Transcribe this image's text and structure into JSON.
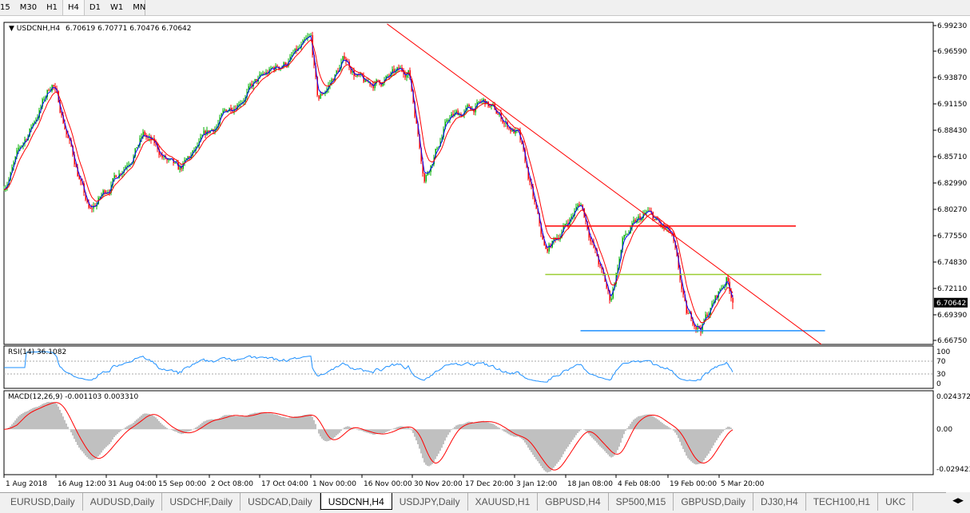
{
  "toolbar": {
    "timeframes": [
      "15",
      "M30",
      "H1",
      "H4",
      "D1",
      "W1",
      "MN"
    ],
    "active": "H4"
  },
  "header": {
    "symbol": "USDCNH,H4",
    "ohlc": "6.70619 6.70771 6.70476 6.70642"
  },
  "price_axis": {
    "labels": [
      "6.99230",
      "6.96590",
      "6.93870",
      "6.91150",
      "6.88430",
      "6.85710",
      "6.82990",
      "6.80270",
      "6.77550",
      "6.74830",
      "6.72110",
      "6.69390",
      "6.66750"
    ],
    "current": "6.70642"
  },
  "rsi": {
    "title": "RSI(14) 36.1082",
    "levels": [
      "100",
      "70",
      "30",
      "0"
    ]
  },
  "macd": {
    "title": "MACD(12,26,9) -0.001103 0.003310",
    "labels": [
      "0.024372",
      "0.00",
      "-0.029423"
    ]
  },
  "xaxis": {
    "labels": [
      "1 Aug 2018",
      "16 Aug 12:00",
      "31 Aug 04:00",
      "15 Sep 00:00",
      "2 Oct 08:00",
      "17 Oct 04:00",
      "1 Nov 00:00",
      "16 Nov 00:00",
      "30 Nov 20:00",
      "17 Dec 20:00",
      "3 Jan 12:00",
      "18 Jan 08:00",
      "4 Feb 08:00",
      "19 Feb 00:00",
      "5 Mar 20:00"
    ],
    "dates": [
      "2018-08-01",
      "2018-08-16",
      "2018-08-31",
      "2018-09-15",
      "2018-10-02",
      "2018-10-17",
      "2018-11-01",
      "2018-11-16",
      "2018-11-30",
      "2018-12-17",
      "2019-01-03",
      "2019-01-18",
      "2019-02-04",
      "2019-02-19",
      "2019-03-05"
    ]
  },
  "tabs": [
    "EURUSD,Daily",
    "AUDUSD,Daily",
    "USDCHF,Daily",
    "USDCAD,Daily",
    "USDCNH,H4",
    "USDJPY,Daily",
    "XAUUSD,H1",
    "GBPUSD,H4",
    "SP500,M15",
    "GBPUSD,Daily",
    "DJ30,H4",
    "TECH100,H1",
    "UKC"
  ],
  "active_tab": "USDCNH,H4",
  "colors": {
    "bull": "#00b000",
    "bear": "#ff0000",
    "ma_fast": "#0000ff",
    "ma_slow": "#ff0000",
    "rsi": "#1e90ff",
    "macd_hist": "#c0c0c0",
    "macd_signal": "#ff0000",
    "resistance": "#ff0000",
    "mid": "#9acd32",
    "support": "#1e90ff",
    "trendline": "#ff0000"
  },
  "chart_data": {
    "type": "candlestick",
    "symbol": "USDCNH",
    "timeframe": "H4",
    "ylim": [
      6.6675,
      6.9923
    ],
    "price_path": [
      [
        "2018-08-01",
        6.8275
      ],
      [
        "2018-08-15",
        6.935
      ],
      [
        "2018-08-26",
        6.797
      ],
      [
        "2018-09-11",
        6.88
      ],
      [
        "2018-09-22",
        6.838
      ],
      [
        "2018-10-11",
        6.92
      ],
      [
        "2018-11-01",
        6.974
      ],
      [
        "2018-11-03",
        6.912
      ],
      [
        "2018-11-11",
        6.958
      ],
      [
        "2018-11-17",
        6.929
      ],
      [
        "2018-11-29",
        6.946
      ],
      [
        "2018-12-04",
        6.838
      ],
      [
        "2018-12-12",
        6.896
      ],
      [
        "2018-12-24",
        6.912
      ],
      [
        "2019-01-04",
        6.88
      ],
      [
        "2019-01-12",
        6.756
      ],
      [
        "2019-01-23",
        6.81
      ],
      [
        "2019-02-02",
        6.707
      ],
      [
        "2019-02-06",
        6.773
      ],
      [
        "2019-02-13",
        6.797
      ],
      [
        "2019-02-20",
        6.773
      ],
      [
        "2019-02-24",
        6.69
      ],
      [
        "2019-02-28",
        6.682
      ],
      [
        "2019-03-07",
        6.732
      ],
      [
        "2019-03-09",
        6.7064
      ]
    ],
    "horizontal_lines": [
      {
        "price": 6.7855,
        "from": "2019-01-12",
        "to": "2019-03-26",
        "color": "#ff0000"
      },
      {
        "price": 6.7355,
        "from": "2019-01-12",
        "to": "2019-04-02",
        "color": "#9acd32"
      },
      {
        "price": 6.6775,
        "from": "2019-01-23",
        "to": "2019-04-03",
        "color": "#1e90ff"
      }
    ],
    "trendline": {
      "from": [
        "2018-11-23",
        6.994
      ],
      "to": [
        "2019-04-02",
        6.663
      ]
    },
    "rsi_levels": [
      30,
      70
    ],
    "macd_range": [
      -0.029423,
      0.024372
    ]
  }
}
